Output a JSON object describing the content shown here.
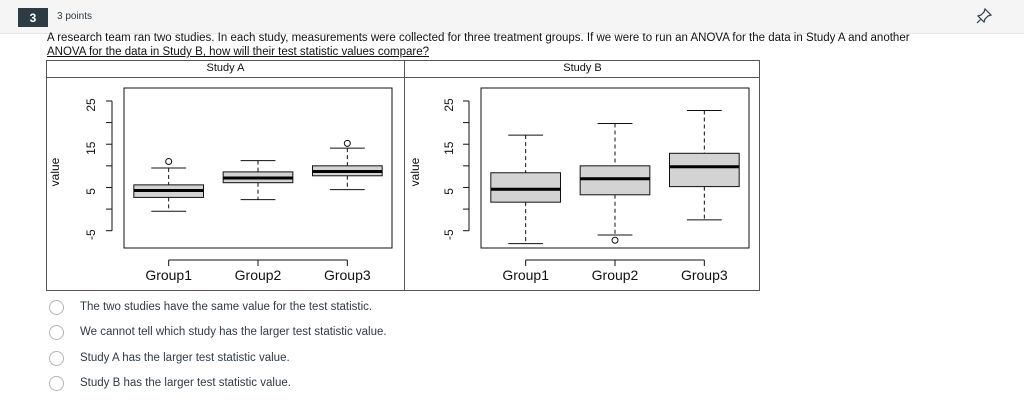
{
  "question": {
    "number": "3",
    "points": "3 points",
    "text_part1": "A research team ran two studies. In each study, measurements were collected for three treatment groups. If we were to run an ANOVA for the data in Study A and another",
    "text_part2": "ANOVA for the data in Study B, how will their test statistic values compare?"
  },
  "icons": {
    "pin": "pin-icon"
  },
  "chart_data": [
    {
      "type": "boxplot",
      "title": "Study A",
      "ylabel": "value",
      "xlabel": "",
      "categories": [
        "Group1",
        "Group2",
        "Group3"
      ],
      "y_ticks": [
        -5,
        5,
        15,
        25
      ],
      "ylim": [
        -9,
        28
      ],
      "boxes": [
        {
          "min": -0.5,
          "q1": 2.7,
          "median": 4.3,
          "q3": 5.6,
          "max": 9.5,
          "outliers": [
            11
          ]
        },
        {
          "min": 2.2,
          "q1": 6.1,
          "median": 7.2,
          "q3": 8.6,
          "max": 11.2,
          "outliers": []
        },
        {
          "min": 4.5,
          "q1": 7.7,
          "median": 8.7,
          "q3": 10.0,
          "max": 14.1,
          "outliers": [
            15.2
          ]
        }
      ]
    },
    {
      "type": "boxplot",
      "title": "Study B",
      "ylabel": "value",
      "xlabel": "",
      "categories": [
        "Group1",
        "Group2",
        "Group3"
      ],
      "y_ticks": [
        -5,
        5,
        15,
        25
      ],
      "ylim": [
        -9,
        28
      ],
      "boxes": [
        {
          "min": -8.0,
          "q1": 1.6,
          "median": 4.6,
          "q3": 8.4,
          "max": 17.1,
          "outliers": []
        },
        {
          "min": -6.0,
          "q1": 3.3,
          "median": 7.0,
          "q3": 10.0,
          "max": 19.8,
          "outliers": [
            -7.2
          ]
        },
        {
          "min": -2.5,
          "q1": 5.2,
          "median": 9.8,
          "q3": 12.9,
          "max": 22.8,
          "outliers": []
        }
      ]
    }
  ],
  "options": [
    {
      "label": "The two studies have the same value for the test statistic."
    },
    {
      "label": "We cannot tell which study has the larger test statistic value."
    },
    {
      "label": "Study A has the larger test statistic value."
    },
    {
      "label": "Study B has the larger test statistic value."
    }
  ]
}
